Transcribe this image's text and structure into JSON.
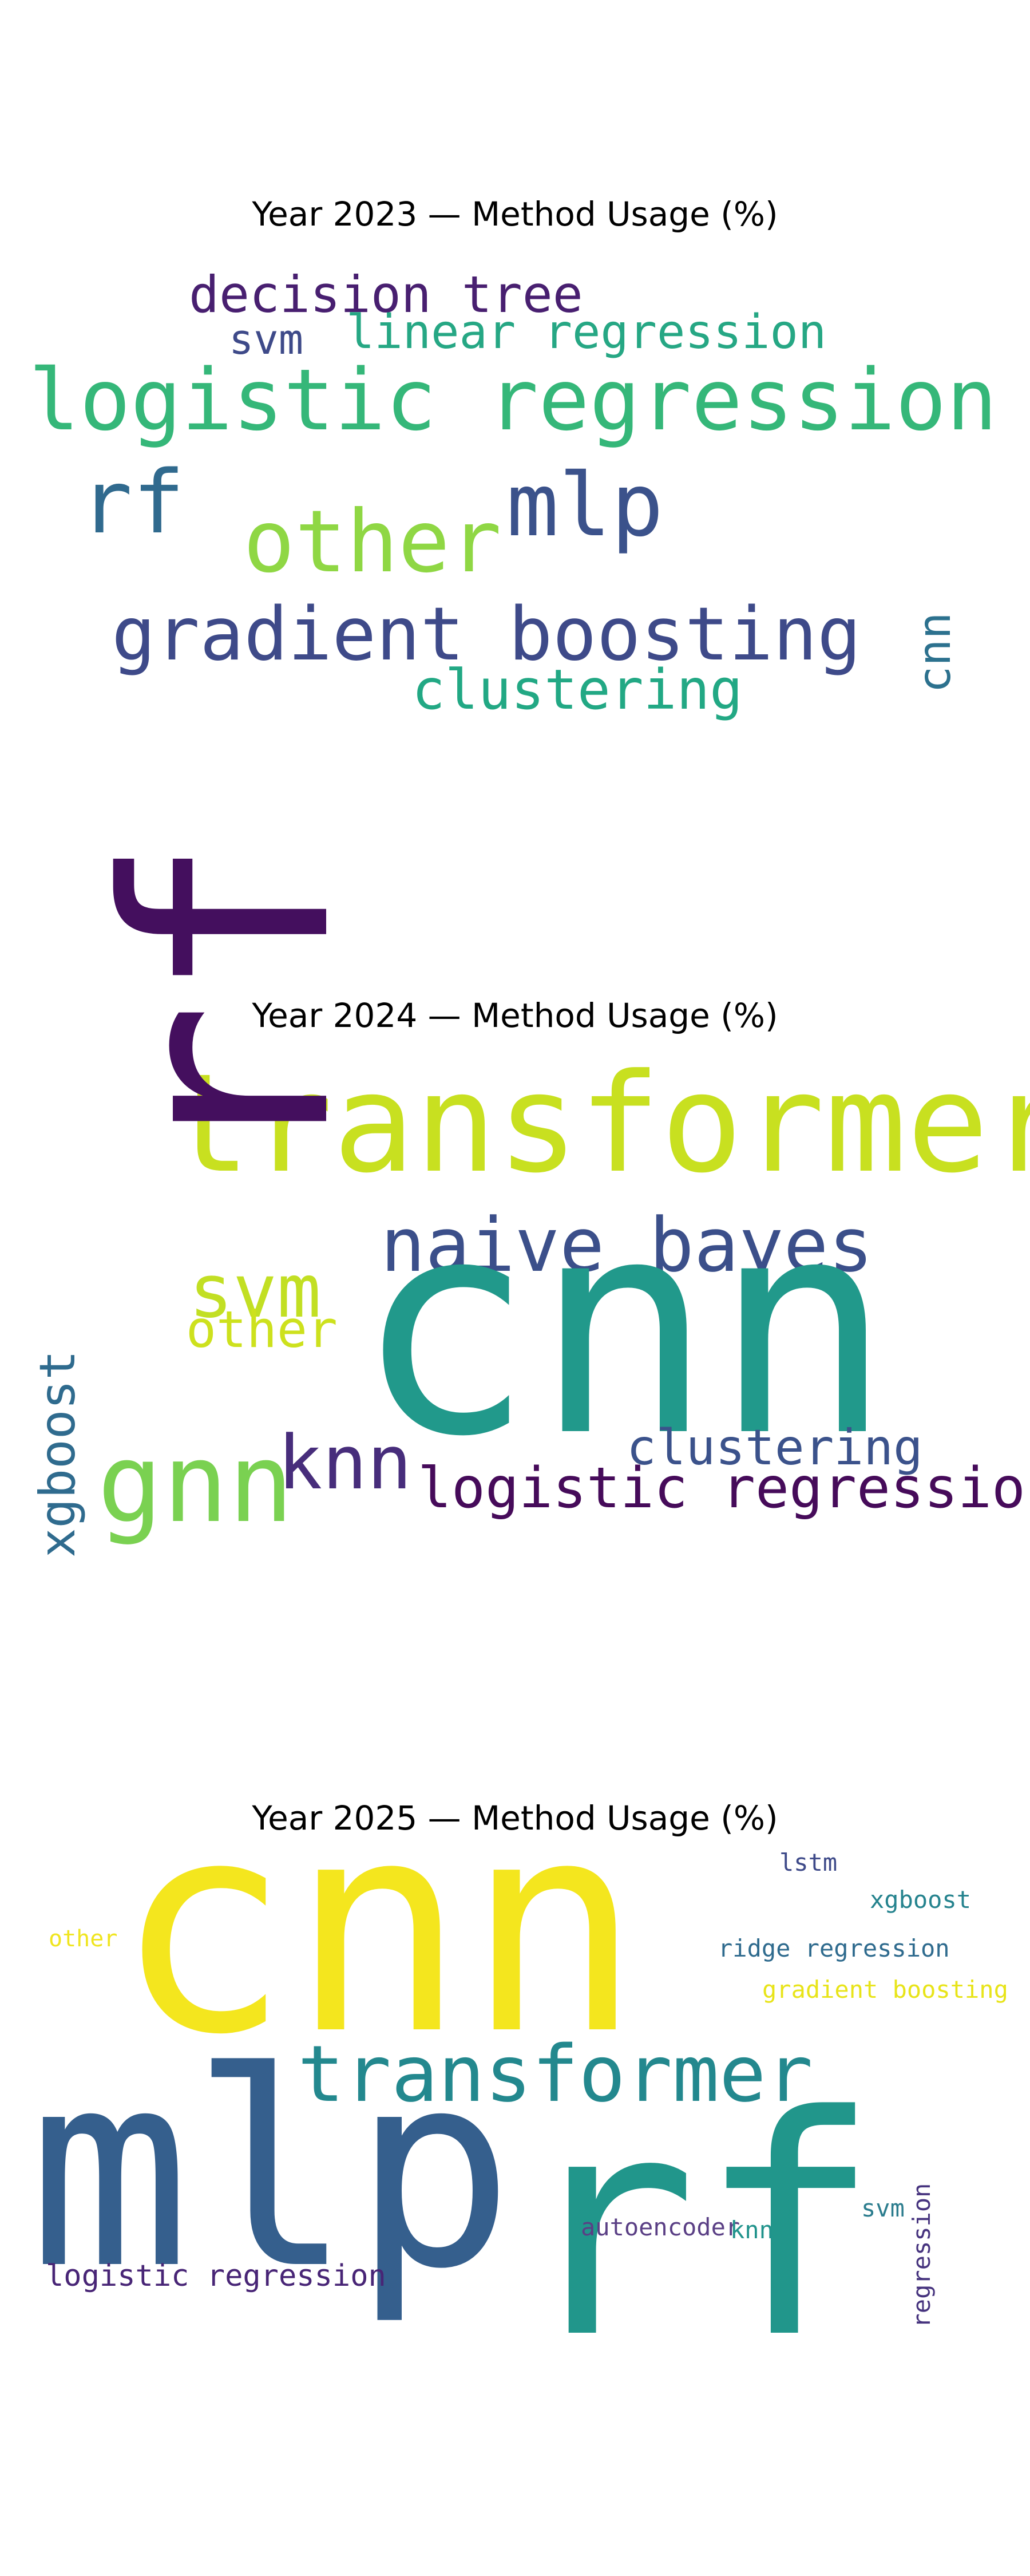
{
  "chart_data": [
    {
      "type": "wordcloud",
      "title": "Year 2023 — Method Usage (%)",
      "words": [
        {
          "text": "decision tree",
          "color": "#481f70"
        },
        {
          "text": "svm",
          "color": "#3e4a89"
        },
        {
          "text": "linear regression",
          "color": "#26a784"
        },
        {
          "text": "logistic regression",
          "color": "#35b779"
        },
        {
          "text": "rf",
          "color": "#306a8e"
        },
        {
          "text": "mlp",
          "color": "#3b528b"
        },
        {
          "text": "other",
          "color": "#8fd744"
        },
        {
          "text": "gradient boosting",
          "color": "#3e4a89"
        },
        {
          "text": "cnn",
          "color": "#2c718e"
        },
        {
          "text": "clustering",
          "color": "#22a884"
        }
      ]
    },
    {
      "type": "wordcloud",
      "title": "Year 2024 — Method Usage (%)",
      "words": [
        {
          "text": "transformer",
          "color": "#c8e020"
        },
        {
          "text": "rf",
          "color": "#440f5e"
        },
        {
          "text": "naive bayes",
          "color": "#3b4f8a"
        },
        {
          "text": "svm",
          "color": "#c2df23"
        },
        {
          "text": "cnn",
          "color": "#21998b"
        },
        {
          "text": "other",
          "color": "#cde11d"
        },
        {
          "text": "xgboost",
          "color": "#2f6b8e"
        },
        {
          "text": "gnn",
          "color": "#7ad151"
        },
        {
          "text": "knn",
          "color": "#472d7b"
        },
        {
          "text": "clustering",
          "color": "#3b528b"
        },
        {
          "text": "logistic regression",
          "color": "#460b5a"
        }
      ]
    },
    {
      "type": "wordcloud",
      "title": "Year 2025 — Method Usage (%)",
      "words": [
        {
          "text": "cnn",
          "color": "#f4e61e"
        },
        {
          "text": "lstm",
          "color": "#3e4a89"
        },
        {
          "text": "xgboost",
          "color": "#25838e"
        },
        {
          "text": "other",
          "color": "#f0e51f"
        },
        {
          "text": "ridge regression",
          "color": "#2f6b8e"
        },
        {
          "text": "gradient boosting",
          "color": "#e8e419"
        },
        {
          "text": "transformer",
          "color": "#23888e"
        },
        {
          "text": "mlp",
          "color": "#355f8d"
        },
        {
          "text": "rf",
          "color": "#21968b"
        },
        {
          "text": "autoencoder",
          "color": "#5a3f85"
        },
        {
          "text": "knn",
          "color": "#21938c"
        },
        {
          "text": "svm",
          "color": "#2c7d8e"
        },
        {
          "text": "regression",
          "color": "#46337e"
        },
        {
          "text": "logistic regression",
          "color": "#482576"
        }
      ]
    }
  ]
}
